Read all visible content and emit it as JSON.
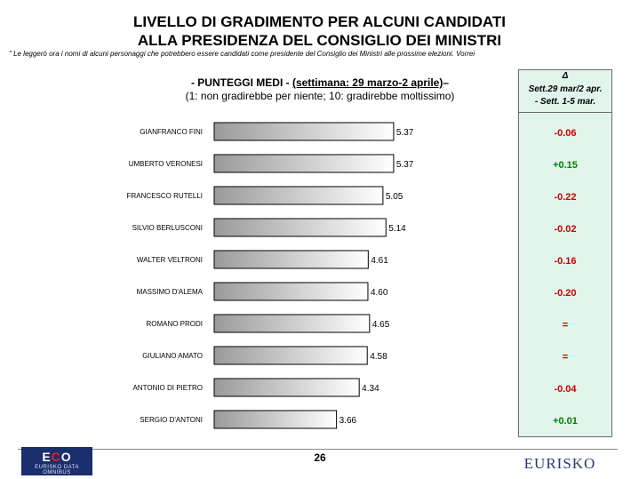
{
  "title_line1": "LIVELLO DI GRADIMENTO PER ALCUNI CANDIDATI",
  "title_line2": "ALLA PRESIDENZA DEL CONSIGLIO DEI MINISTRI",
  "note": "\" Le leggerò ora i nomi di alcuni personaggi che potrebbero essere candidati come presidente del Consiglio dei Ministri alle prossime elezioni. Vorrei",
  "subhead": {
    "prefix": "- PUNTEGGI MEDI - ",
    "period": "(settimana: 29 marzo-2 aprile)",
    "suffix": "–",
    "scale": "(1: non gradirebbe per niente; 10: gradirebbe moltissimo)"
  },
  "delta_header": {
    "symbol": "Δ",
    "line1": "Sett.29 mar/2 apr.",
    "line2": "- Sett. 1-5 mar."
  },
  "chart_data": {
    "type": "bar",
    "orientation": "horizontal",
    "categories": [
      "GIANFRANCO FINI",
      "UMBERTO VERONESI",
      "FRANCESCO RUTELLI",
      "SILVIO BERLUSCONI",
      "WALTER VELTRONI",
      "MASSIMO D'ALEMA",
      "ROMANO PRODI",
      "GIULIANO AMATO",
      "ANTONIO DI PIETRO",
      "SERGIO D'ANTONI"
    ],
    "values": [
      5.37,
      5.37,
      5.05,
      5.14,
      4.61,
      4.6,
      4.65,
      4.58,
      4.34,
      3.66
    ],
    "value_labels": [
      "5.37",
      "5.37",
      "5.05",
      "5.14",
      "4.61",
      "4.60",
      "4.65",
      "4.58",
      "4.34",
      "3.66"
    ],
    "deltas": [
      "-0.06",
      "+0.15",
      "-0.22",
      "-0.02",
      "-0.16",
      "-0.20",
      "=",
      "=",
      "-0.04",
      "+0.01"
    ],
    "grid": false,
    "colors": {
      "negative": "#cc0000",
      "positive": "#008000",
      "equal": "#cc0000",
      "bar_dark": "#9a9a9a",
      "bar_light": "#ffffff"
    }
  },
  "footer": {
    "page_number": "26",
    "logo_left_word_e": "E",
    "logo_left_word_c": "C",
    "logo_left_word_o": "O",
    "logo_left_sub": "EURISKO DATA OMNIBUS",
    "logo_right": "EURISKO"
  }
}
